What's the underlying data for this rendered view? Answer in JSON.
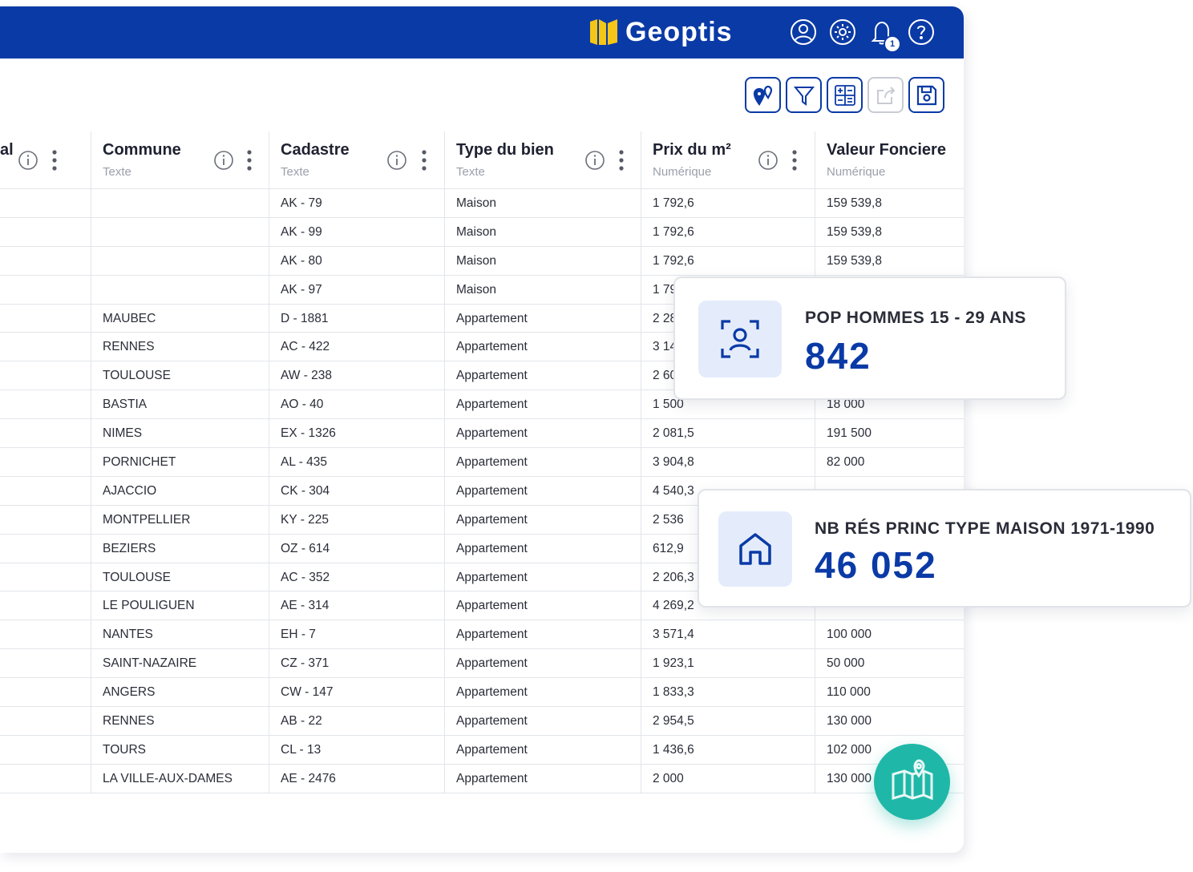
{
  "brand": {
    "name": "Geoptis"
  },
  "topbar": {
    "notification_count": "1",
    "icons": [
      "user-icon",
      "settings-icon",
      "bell-icon",
      "help-icon"
    ]
  },
  "toolbar": {
    "buttons": [
      "map-pin-icon",
      "filter-icon",
      "calculator-icon",
      "export-icon",
      "save-icon"
    ]
  },
  "columns": [
    {
      "title": "al",
      "type": ""
    },
    {
      "title": "Commune",
      "type": "Texte"
    },
    {
      "title": "Cadastre",
      "type": "Texte"
    },
    {
      "title": "Type du bien",
      "type": "Texte"
    },
    {
      "title": "Prix du m²",
      "type": "Numérique"
    },
    {
      "title": "Valeur Fonciere",
      "type": "Numérique"
    }
  ],
  "rows": [
    [
      "",
      "",
      "AK - 79",
      "Maison",
      "1 792,6",
      "159 539,8"
    ],
    [
      "",
      "",
      "AK - 99",
      "Maison",
      "1 792,6",
      "159 539,8"
    ],
    [
      "",
      "",
      "AK - 80",
      "Maison",
      "1 792,6",
      "159 539,8"
    ],
    [
      "",
      "",
      "AK - 97",
      "Maison",
      "1 79",
      ""
    ],
    [
      "",
      "MAUBEC",
      "D - 1881",
      "Appartement",
      "2 28",
      ""
    ],
    [
      "",
      "RENNES",
      "AC - 422",
      "Appartement",
      "3 14",
      ""
    ],
    [
      "",
      "TOULOUSE",
      "AW - 238",
      "Appartement",
      "2 60",
      ""
    ],
    [
      "",
      "BASTIA",
      "AO - 40",
      "Appartement",
      "1 500",
      "18 000"
    ],
    [
      "",
      "NIMES",
      "EX - 1326",
      "Appartement",
      "2 081,5",
      "191 500"
    ],
    [
      "",
      "PORNICHET",
      "AL - 435",
      "Appartement",
      "3 904,8",
      "82 000"
    ],
    [
      "",
      "AJACCIO",
      "CK - 304",
      "Appartement",
      "4 540,3",
      ""
    ],
    [
      "",
      "MONTPELLIER",
      "KY - 225",
      "Appartement",
      "2 536",
      ""
    ],
    [
      "",
      "BEZIERS",
      "OZ - 614",
      "Appartement",
      "612,9",
      ""
    ],
    [
      "",
      "TOULOUSE",
      "AC - 352",
      "Appartement",
      "2 206,3",
      ""
    ],
    [
      "",
      "LE POULIGUEN",
      "AE - 314",
      "Appartement",
      "4 269,2",
      ""
    ],
    [
      "",
      "NANTES",
      "EH - 7",
      "Appartement",
      "3 571,4",
      "100 000"
    ],
    [
      "",
      "SAINT-NAZAIRE",
      "CZ - 371",
      "Appartement",
      "1 923,1",
      "50 000"
    ],
    [
      "",
      "ANGERS",
      "CW - 147",
      "Appartement",
      "1 833,3",
      "110 000"
    ],
    [
      "",
      "RENNES",
      "AB - 22",
      "Appartement",
      "2 954,5",
      "130 000"
    ],
    [
      "",
      "TOURS",
      "CL - 13",
      "Appartement",
      "1 436,6",
      "102 000"
    ],
    [
      "",
      "LA VILLE-AUX-DAMES",
      "AE - 2476",
      "Appartement",
      "2 000",
      "130 000"
    ]
  ],
  "cards": [
    {
      "label": "POP HOMMES 15 - 29 ANS",
      "value": "842",
      "icon": "person-scan-icon"
    },
    {
      "label": "NB RÉS PRINC TYPE MAISON 1971-1990",
      "value": "46 052",
      "icon": "house-icon"
    }
  ],
  "fab": {
    "icon": "map-icon"
  },
  "colors": {
    "primary": "#0a3aa6",
    "accent": "#1fb8a8",
    "icon_bg": "#e4ecfb",
    "logo": "#f5c518"
  }
}
